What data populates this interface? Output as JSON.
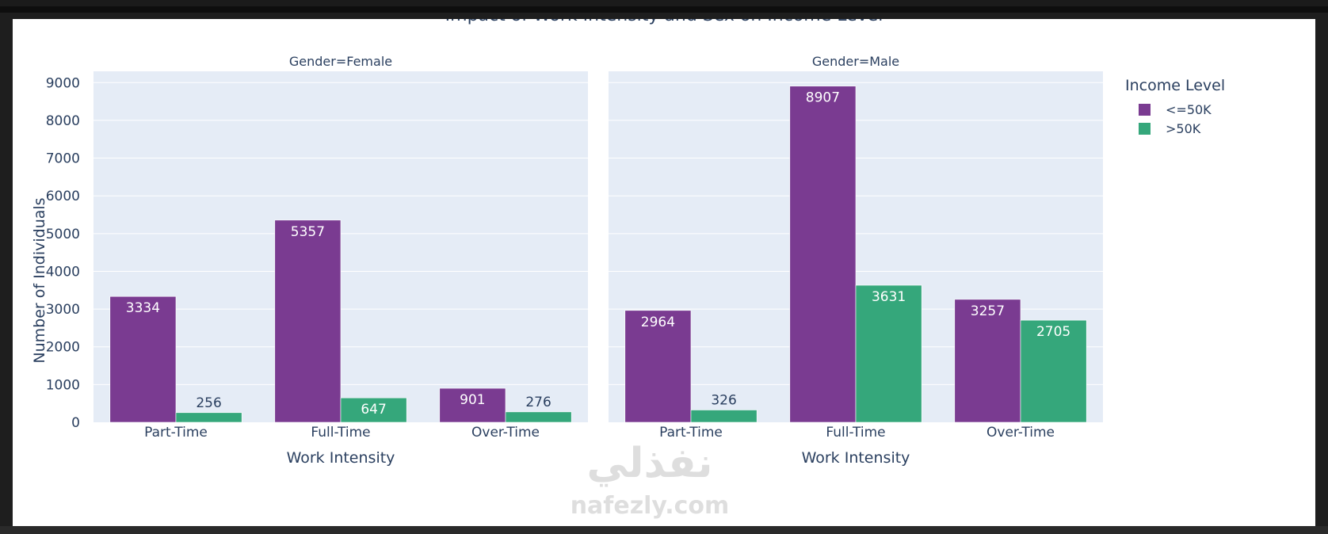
{
  "chart_data": {
    "type": "bar",
    "title": "Impact of Work Intensity and Sex on Income Level",
    "ylabel": "Number of Individuals",
    "xlabel": "Work Intensity",
    "ylim": [
      0,
      9300
    ],
    "yticks": [
      0,
      1000,
      2000,
      3000,
      4000,
      5000,
      6000,
      7000,
      8000,
      9000
    ],
    "categories": [
      "Part-Time",
      "Full-Time",
      "Over-Time"
    ],
    "legend": {
      "title": "Income Level",
      "placement": "top-right"
    },
    "colors": {
      "<=50K": "#7a3b91",
      ">50K": "#35a77b",
      "plot_bg": "#e5ecf6"
    },
    "facets": [
      {
        "title": "Gender=Female",
        "series": [
          {
            "name": "<=50K",
            "values": [
              3334,
              5357,
              901
            ]
          },
          {
            "name": ">50K",
            "values": [
              256,
              647,
              276
            ]
          }
        ]
      },
      {
        "title": "Gender=Male",
        "series": [
          {
            "name": "<=50K",
            "values": [
              2964,
              8907,
              3257
            ]
          },
          {
            "name": ">50K",
            "values": [
              326,
              3631,
              2705
            ]
          }
        ]
      }
    ]
  },
  "watermark": {
    "arabic": "نفذلي",
    "latin": "nafezly.com"
  }
}
